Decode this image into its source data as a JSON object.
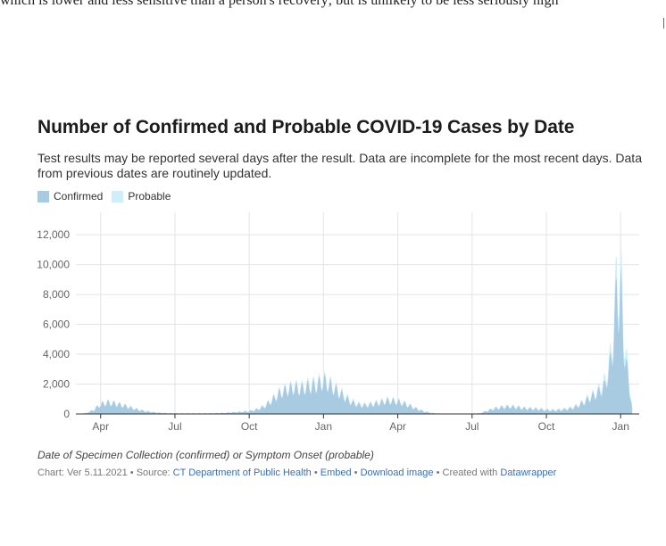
{
  "page": {
    "top_text": "which is lower and less sensitive than a person's recovery; but is unlikely to be less seriously high"
  },
  "header": {
    "title": "Number of Confirmed and Probable COVID-19 Cases by Date",
    "subtitle": "Test results may be reported several days after the result. Data are incomplete for the most recent days. Data from previous dates are routinely updated."
  },
  "legend": {
    "confirmed": "Confirmed",
    "probable": "Probable"
  },
  "footer": {
    "note": "Date of Specimen Collection (confirmed) or Symptom Onset (probable)",
    "version": "Chart: Ver 5.11.2021",
    "source_prefix": "Source:",
    "source_link": "CT Department of Public Health",
    "embed": "Embed",
    "download": "Download image",
    "created_prefix": "Created with",
    "created_link": "Datawrapper",
    "sep": "•"
  },
  "colors": {
    "confirmed": "#a9cbe2",
    "probable": "#cdeefb",
    "grid": "#e4e4e4",
    "axis": "#333333"
  },
  "chart_data": {
    "type": "area",
    "stacked": true,
    "ylim": [
      0,
      13500
    ],
    "yticks": [
      0,
      2000,
      4000,
      6000,
      8000,
      10000,
      12000
    ],
    "ytick_labels": [
      "0",
      "2,000",
      "4,000",
      "6,000",
      "8,000",
      "10,000",
      "12,000"
    ],
    "xticks": [
      {
        "label": "Apr",
        "month": 2
      },
      {
        "label": "Jul",
        "month": 5
      },
      {
        "label": "Oct",
        "month": 8
      },
      {
        "label": "Jan",
        "month": 11
      },
      {
        "label": "Apr",
        "month": 14
      },
      {
        "label": "Jul",
        "month": 17
      },
      {
        "label": "Oct",
        "month": 20
      },
      {
        "label": "Jan",
        "month": 23
      }
    ],
    "x_range_months": [
      1.0,
      23.75
    ],
    "grid": true,
    "legend_position": "top-left",
    "series": [
      {
        "name": "Confirmed",
        "points": [
          [
            1.0,
            0
          ],
          [
            1.4,
            50
          ],
          [
            1.7,
            300
          ],
          [
            2.0,
            800
          ],
          [
            2.3,
            950
          ],
          [
            2.6,
            850
          ],
          [
            3.0,
            650
          ],
          [
            3.4,
            400
          ],
          [
            3.8,
            220
          ],
          [
            4.2,
            110
          ],
          [
            4.6,
            60
          ],
          [
            5.0,
            40
          ],
          [
            5.5,
            40
          ],
          [
            6.0,
            40
          ],
          [
            6.5,
            50
          ],
          [
            7.0,
            80
          ],
          [
            7.5,
            140
          ],
          [
            8.0,
            220
          ],
          [
            8.3,
            350
          ],
          [
            8.6,
            600
          ],
          [
            8.9,
            1100
          ],
          [
            9.2,
            1700
          ],
          [
            9.5,
            2000
          ],
          [
            9.8,
            2200
          ],
          [
            10.1,
            2100
          ],
          [
            10.4,
            2300
          ],
          [
            10.7,
            2400
          ],
          [
            11.0,
            2700
          ],
          [
            11.2,
            2500
          ],
          [
            11.5,
            2000
          ],
          [
            11.8,
            1500
          ],
          [
            12.1,
            1000
          ],
          [
            12.4,
            750
          ],
          [
            12.7,
            700
          ],
          [
            13.0,
            800
          ],
          [
            13.3,
            950
          ],
          [
            13.6,
            1100
          ],
          [
            13.9,
            1050
          ],
          [
            14.2,
            900
          ],
          [
            14.5,
            650
          ],
          [
            14.8,
            380
          ],
          [
            15.1,
            180
          ],
          [
            15.4,
            60
          ],
          [
            15.8,
            20
          ],
          [
            16.3,
            10
          ],
          [
            16.8,
            15
          ],
          [
            17.3,
            40
          ],
          [
            17.6,
            250
          ],
          [
            17.9,
            450
          ],
          [
            18.2,
            550
          ],
          [
            18.5,
            600
          ],
          [
            18.8,
            550
          ],
          [
            19.1,
            450
          ],
          [
            19.4,
            420
          ],
          [
            19.7,
            380
          ],
          [
            20.0,
            320
          ],
          [
            20.3,
            280
          ],
          [
            20.6,
            330
          ],
          [
            20.9,
            420
          ],
          [
            21.2,
            600
          ],
          [
            21.5,
            950
          ],
          [
            21.8,
            1400
          ],
          [
            22.1,
            1800
          ],
          [
            22.35,
            2300
          ],
          [
            22.55,
            3800
          ],
          [
            22.7,
            6000
          ],
          [
            22.8,
            9000
          ],
          [
            22.85,
            10700
          ],
          [
            22.9,
            9800
          ],
          [
            22.95,
            8800
          ],
          [
            23.0,
            10600
          ],
          [
            23.05,
            8800
          ],
          [
            23.12,
            6200
          ],
          [
            23.2,
            4200
          ],
          [
            23.3,
            3200
          ],
          [
            23.4,
            1500
          ],
          [
            23.48,
            200
          ],
          [
            23.5,
            0
          ]
        ]
      },
      {
        "name": "Probable",
        "points": [
          [
            1.0,
            0
          ],
          [
            2.0,
            60
          ],
          [
            3.0,
            60
          ],
          [
            4.0,
            30
          ],
          [
            6.0,
            10
          ],
          [
            8.0,
            30
          ],
          [
            9.5,
            150
          ],
          [
            11.0,
            250
          ],
          [
            12.5,
            120
          ],
          [
            14.0,
            100
          ],
          [
            15.5,
            20
          ],
          [
            17.5,
            30
          ],
          [
            19.0,
            80
          ],
          [
            21.0,
            70
          ],
          [
            22.0,
            200
          ],
          [
            22.7,
            800
          ],
          [
            22.85,
            1800
          ],
          [
            22.95,
            1500
          ],
          [
            23.0,
            2200
          ],
          [
            23.1,
            1200
          ],
          [
            23.3,
            600
          ],
          [
            23.5,
            0
          ]
        ]
      }
    ]
  }
}
